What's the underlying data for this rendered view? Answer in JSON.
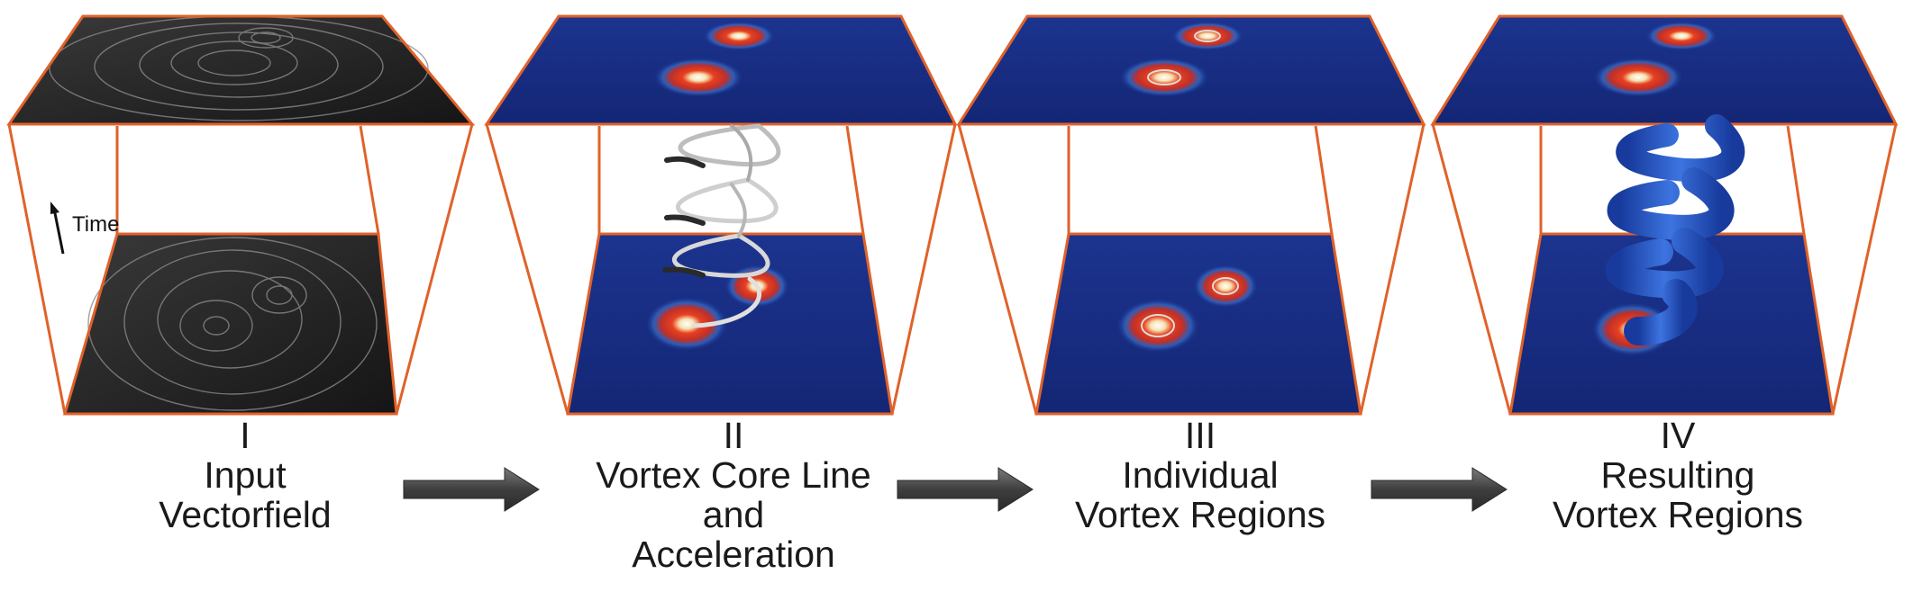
{
  "time_label": "Time",
  "stages": [
    {
      "numeral": "I",
      "lines": [
        "Input",
        "Vectorfield"
      ]
    },
    {
      "numeral": "II",
      "lines": [
        "Vortex Core Line",
        "and",
        "Acceleration"
      ]
    },
    {
      "numeral": "III",
      "lines": [
        "Individual",
        "Vortex Regions"
      ]
    },
    {
      "numeral": "IV",
      "lines": [
        "Resulting",
        "Vortex Regions"
      ]
    }
  ],
  "colors": {
    "frame_edge": "#e0622a",
    "field_blue": "#1b2f88",
    "vortex_red": "#e03b1f",
    "arrow_fill": "#4a4a4a",
    "swirl_dark": "#2a2a2a",
    "helix_blue": "#2a5fd0"
  }
}
